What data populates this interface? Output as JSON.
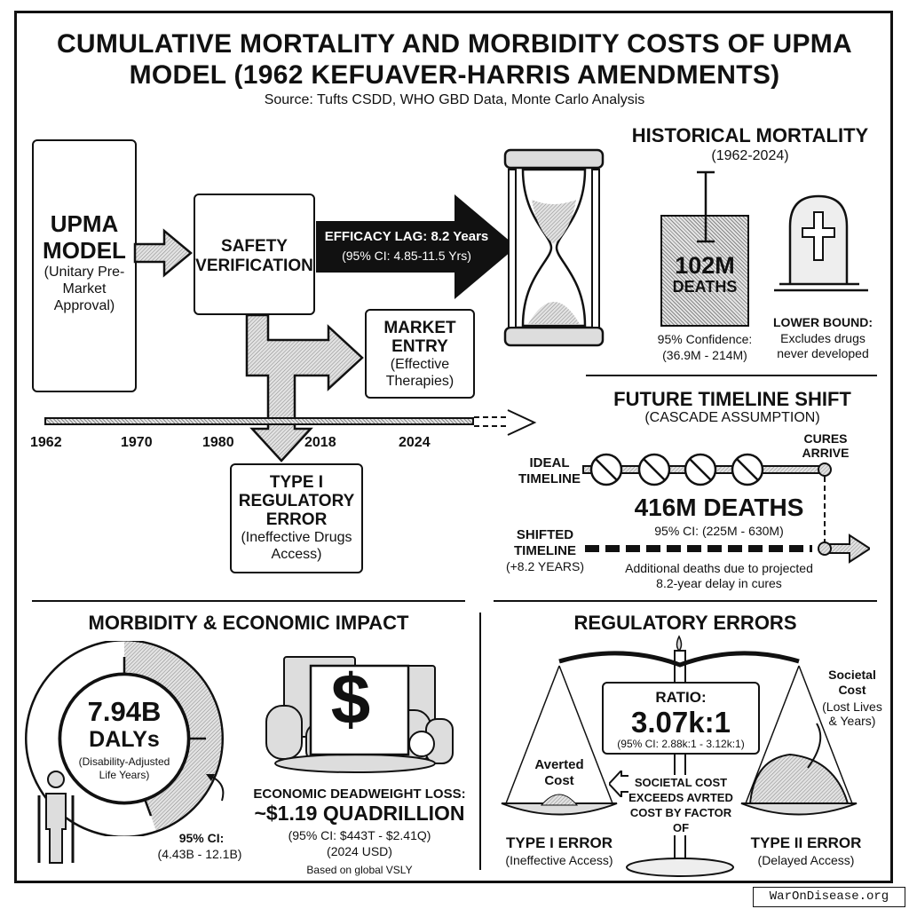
{
  "title": "CUMULATIVE MORTALITY AND MORBIDITY COSTS OF UPMA MODEL (1962 KEFUAVER-HARRIS AMENDMENTS)",
  "source": "Source: Tufts CSDD, WHO GBD Data, Monte Carlo Analysis",
  "flow": {
    "upma": {
      "title1": "UPMA",
      "title2": "MODEL",
      "desc": "(Unitary Pre-Market Approval)"
    },
    "safety": {
      "line1": "SAFETY",
      "line2": "VERIFICATION"
    },
    "lag": {
      "label": "EFFICACY LAG: 8.2 Years",
      "ci": "(95% CI: 4.85-11.5 Yrs)"
    },
    "market": {
      "title": "MARKET ENTRY",
      "desc": "(Effective Therapies)"
    },
    "type1": {
      "title": "TYPE I REGULATORY ERROR",
      "desc": "(Ineffective Drugs Access)"
    },
    "timeline": [
      "1962",
      "1970",
      "1980",
      "2018",
      "2024"
    ]
  },
  "historical": {
    "title": "HISTORICAL MORTALITY",
    "years": "(1962-2024)",
    "value": "102M",
    "unit": "DEATHS",
    "ci_label": "95% Confidence:",
    "ci": "(36.9M - 214M)",
    "bound_title": "LOWER BOUND:",
    "bound_desc": "Excludes drugs never developed"
  },
  "future": {
    "title": "FUTURE TIMELINE SHIFT",
    "subtitle": "(CASCADE ASSUMPTION)",
    "ideal": "IDEAL TIMELINE",
    "cures": "CURES ARRIVE",
    "value": "416M DEATHS",
    "ci": "95% CI: (225M - 630M)",
    "shifted": "SHIFTED TIMELINE",
    "shift": "(+8.2 YEARS)",
    "note": "Additional deaths due to projected 8.2-year delay in cures"
  },
  "morbidity": {
    "title": "MORBIDITY & ECONOMIC IMPACT",
    "dalys": "7.94B",
    "dalys_unit": "DALYs",
    "dalys_desc": "(Disability-Adjusted Life Years)",
    "ci_label": "95% CI:",
    "ci": "(4.43B - 12.1B)",
    "loss_label": "ECONOMIC DEADWEIGHT LOSS:",
    "loss": "~$1.19 QUADRILLION",
    "loss_ci": "(95% CI: $443T - $2.41Q)",
    "loss_year": "(2024 USD)",
    "basis": "Based on global VSLY"
  },
  "errors": {
    "title": "REGULATORY ERRORS",
    "ratio_label": "RATIO:",
    "ratio": "3.07k:1",
    "ratio_ci": "(95% CI: 2.88k:1 - 3.12k:1)",
    "averted": "Averted Cost",
    "societal": "Societal Cost",
    "societal_desc": "(Lost Lives & Years)",
    "exceeds": "SOCIETAL COST EXCEEDS AVRTED COST BY FACTOR OF",
    "type1": "TYPE I ERROR",
    "type1_desc": "(Ineffective Access)",
    "type2": "TYPE II ERROR",
    "type2_desc": "(Delayed Access)"
  },
  "watermark": "WarOnDisease.org"
}
